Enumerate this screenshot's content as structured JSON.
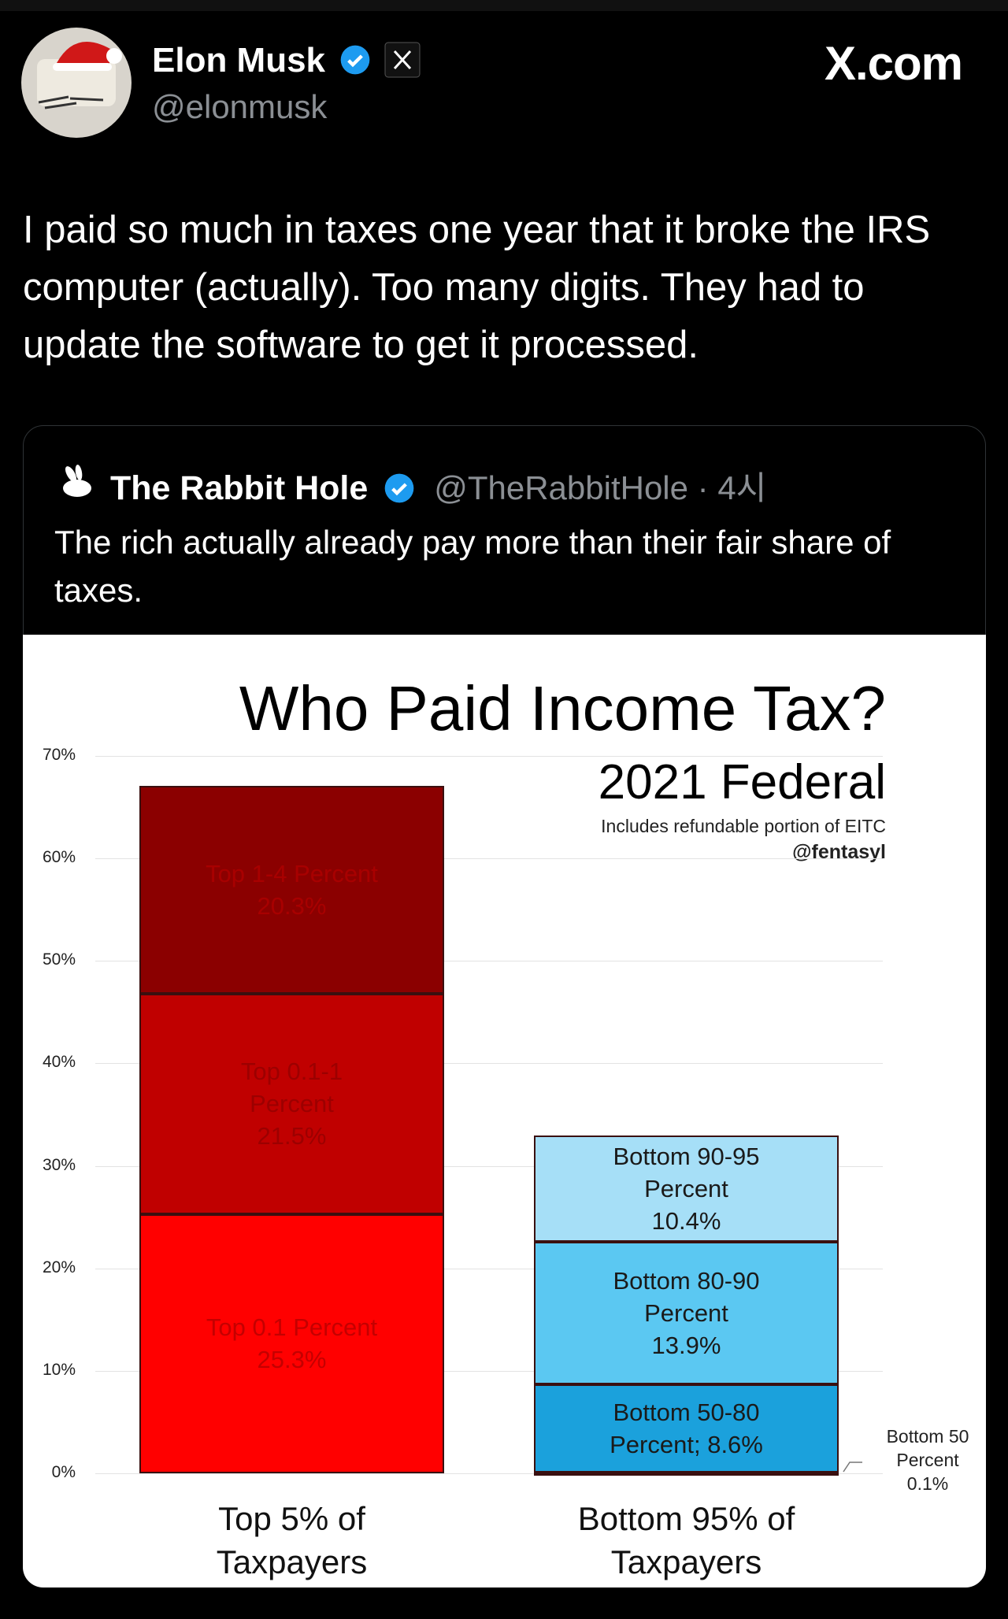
{
  "post": {
    "author": "Elon Musk",
    "handle": "@elonmusk",
    "watermark": "X.com",
    "text": "I paid so much in taxes one year that it broke the IRS computer (actually). Too many digits. They had to update the software to get it processed."
  },
  "quote": {
    "author": "The Rabbit Hole",
    "handle": "@TheRabbitHole",
    "time": "· 4시",
    "text": "The rich actually already pay more than their fair share of taxes."
  },
  "chart_data": {
    "type": "stacked-bar",
    "title": "Who Paid Income Tax?",
    "subtitle": "2021 Federal",
    "note": "Includes refundable portion of EITC",
    "credit": "@fentasyl",
    "categories": [
      "Top 5% of Taxpayers",
      "Bottom 95% of Taxpayers"
    ],
    "series": [
      {
        "name": "Top 0.1 Percent",
        "color": "#ff0000",
        "label_color": "#c40000",
        "values": [
          25.3,
          null
        ],
        "value_labels": [
          "25.3%",
          null
        ]
      },
      {
        "name": "Top 0.1-1 Percent",
        "color": "#c00000",
        "label_color": "#9c0000",
        "values": [
          21.5,
          null
        ],
        "value_labels": [
          "21.5%",
          null
        ]
      },
      {
        "name": "Top 1-4 Percent",
        "color": "#8b0000",
        "label_color": "#a80000",
        "values": [
          20.3,
          null
        ],
        "value_labels": [
          "20.3%",
          null
        ]
      },
      {
        "name": "Bottom 50 Percent",
        "color": "#1ba1dc",
        "label_color": "#222222",
        "values": [
          null,
          0.1
        ],
        "value_labels": [
          null,
          "0.1%"
        ]
      },
      {
        "name": "Bottom 50-80 Percent;",
        "color": "#1ba1dc",
        "label_color": "#1a1a1a",
        "values": [
          null,
          8.6
        ],
        "value_labels": [
          null,
          "8.6%"
        ]
      },
      {
        "name": "Bottom 80-90 Percent",
        "color": "#5bc8f2",
        "label_color": "#1a1a1a",
        "values": [
          null,
          13.9
        ],
        "value_labels": [
          null,
          "13.9%"
        ]
      },
      {
        "name": "Bottom 90-95 Percent",
        "color": "#a6dff7",
        "label_color": "#1a1a1a",
        "values": [
          null,
          10.4
        ],
        "value_labels": [
          null,
          "10.4%"
        ]
      }
    ],
    "ylim": [
      0,
      70
    ],
    "yticks": [
      {
        "value": 0,
        "label": "0%"
      },
      {
        "value": 10,
        "label": "10%"
      },
      {
        "value": 20,
        "label": "20%"
      },
      {
        "value": 30,
        "label": "30%"
      },
      {
        "value": 40,
        "label": "40%"
      },
      {
        "value": 50,
        "label": "50%"
      },
      {
        "value": 60,
        "label": "60%"
      },
      {
        "value": 70,
        "label": "70%"
      }
    ],
    "grid": true
  }
}
